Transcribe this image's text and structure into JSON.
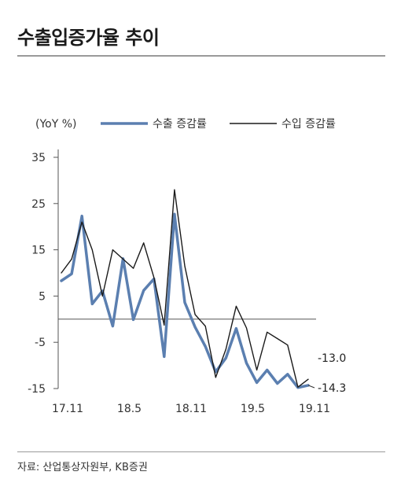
{
  "title": "수출입증가율 추이",
  "source": "자료: 산업통상자원부, KB증권",
  "chart_data": {
    "type": "line",
    "unit_label": "(YoY %)",
    "categories": [
      "17.11",
      "17.12",
      "18.1",
      "18.2",
      "18.3",
      "18.4",
      "18.5",
      "18.6",
      "18.7",
      "18.8",
      "18.9",
      "18.10",
      "18.11",
      "18.12",
      "19.1",
      "19.2",
      "19.3",
      "19.4",
      "19.5",
      "19.6",
      "19.7",
      "19.8",
      "19.9",
      "19.10",
      "19.11"
    ],
    "x_tick_labels": [
      "17.11",
      "18.5",
      "18.11",
      "19.5",
      "19.11"
    ],
    "x_tick_indices": [
      0,
      6,
      12,
      18,
      24
    ],
    "y_ticks": [
      35,
      25,
      15,
      5,
      -5,
      -15
    ],
    "ylim": [
      -15,
      35
    ],
    "series": [
      {
        "name": "수출 증감률",
        "color": "#5b7fb0",
        "width": 3.5,
        "values": [
          8.3,
          9.8,
          22.3,
          3.3,
          6.1,
          -1.5,
          13.1,
          -0.1,
          6.2,
          8.7,
          -8.1,
          22.7,
          3.6,
          -1.7,
          -5.9,
          -11.4,
          -8.4,
          -2.0,
          -9.5,
          -13.7,
          -11.0,
          -13.9,
          -11.9,
          -14.8,
          -14.3
        ]
      },
      {
        "name": "수입 증감률",
        "color": "#1a1a1a",
        "width": 1.4,
        "values": [
          10.0,
          13.0,
          21.0,
          15.0,
          5.0,
          15.0,
          13.0,
          11.0,
          16.5,
          9.0,
          -1.3,
          28.0,
          11.5,
          1.0,
          -1.5,
          -12.6,
          -6.5,
          2.8,
          -1.9,
          -11.0,
          -2.8,
          -4.2,
          -5.6,
          -14.7,
          -13.0
        ]
      }
    ],
    "end_labels": [
      "-14.3",
      "-13.0"
    ]
  }
}
